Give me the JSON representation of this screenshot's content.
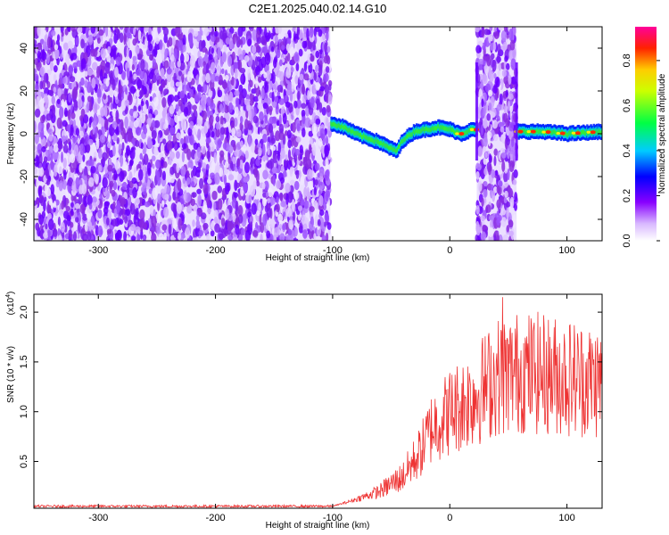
{
  "title": "C2E1.2025.040.02.14.G10",
  "chart_data": [
    {
      "type": "heatmap",
      "xlabel": "Height of straight line (km)",
      "ylabel": "Frequency (Hz)",
      "xlim": [
        -355,
        130
      ],
      "ylim": [
        -50,
        50
      ],
      "xticks": [
        "-300",
        "-200",
        "-100",
        "0",
        "100"
      ],
      "yticks": [
        "-40",
        "-20",
        "0",
        "20",
        "40"
      ],
      "colorbar": {
        "label": "Normalized spectral amplitude",
        "range": [
          0,
          0.95
        ],
        "ticks": [
          "0.0",
          "0.2",
          "0.4",
          "0.6",
          "0.8"
        ],
        "colormap": [
          "#ffffff",
          "#8800ff",
          "#0000ff",
          "#00ffff",
          "#00ff00",
          "#ffff00",
          "#ff0000",
          "#ff00ff"
        ]
      },
      "noise_bands": [
        [
          -355,
          -102
        ],
        [
          23,
          57
        ]
      ],
      "signal_trace": [
        {
          "x": -102,
          "y": 5
        },
        {
          "x": -90,
          "y": 3
        },
        {
          "x": -80,
          "y": 0
        },
        {
          "x": -70,
          "y": -2
        },
        {
          "x": -60,
          "y": -4
        },
        {
          "x": -50,
          "y": -7
        },
        {
          "x": -45,
          "y": -8
        },
        {
          "x": -40,
          "y": -3
        },
        {
          "x": -30,
          "y": 1
        },
        {
          "x": -20,
          "y": 2
        },
        {
          "x": -10,
          "y": 3
        },
        {
          "x": 0,
          "y": 2
        },
        {
          "x": 10,
          "y": 0
        },
        {
          "x": 20,
          "y": 2
        },
        {
          "x": 60,
          "y": 1
        },
        {
          "x": 80,
          "y": 1
        },
        {
          "x": 100,
          "y": 0
        },
        {
          "x": 130,
          "y": 1
        }
      ]
    },
    {
      "type": "line",
      "series_color": "#ee3333",
      "xlabel": "Height of straight line (km)",
      "ylabel": "SNR (10 * v/v)",
      "multiplier_label": "(x10",
      "multiplier_exp": "4",
      "multiplier_close": ")",
      "xlim": [
        -355,
        130
      ],
      "ylim": [
        0.03,
        2.18
      ],
      "xticks": [
        "-300",
        "-200",
        "-100",
        "0",
        "100"
      ],
      "yticks": [
        "0.5",
        "1.0",
        "1.5",
        "2.0"
      ],
      "trend": [
        {
          "x": -355,
          "y": 0.05
        },
        {
          "x": -100,
          "y": 0.05
        },
        {
          "x": -85,
          "y": 0.1
        },
        {
          "x": -60,
          "y": 0.2
        },
        {
          "x": -40,
          "y": 0.35
        },
        {
          "x": -25,
          "y": 0.6
        },
        {
          "x": -15,
          "y": 0.85
        },
        {
          "x": 0,
          "y": 1.0
        },
        {
          "x": 20,
          "y": 1.15
        },
        {
          "x": 40,
          "y": 1.35
        },
        {
          "x": 60,
          "y": 1.4
        },
        {
          "x": 80,
          "y": 1.38
        },
        {
          "x": 100,
          "y": 1.35
        },
        {
          "x": 130,
          "y": 1.3
        }
      ],
      "peak": {
        "x": 45,
        "y": 2.15
      }
    }
  ]
}
